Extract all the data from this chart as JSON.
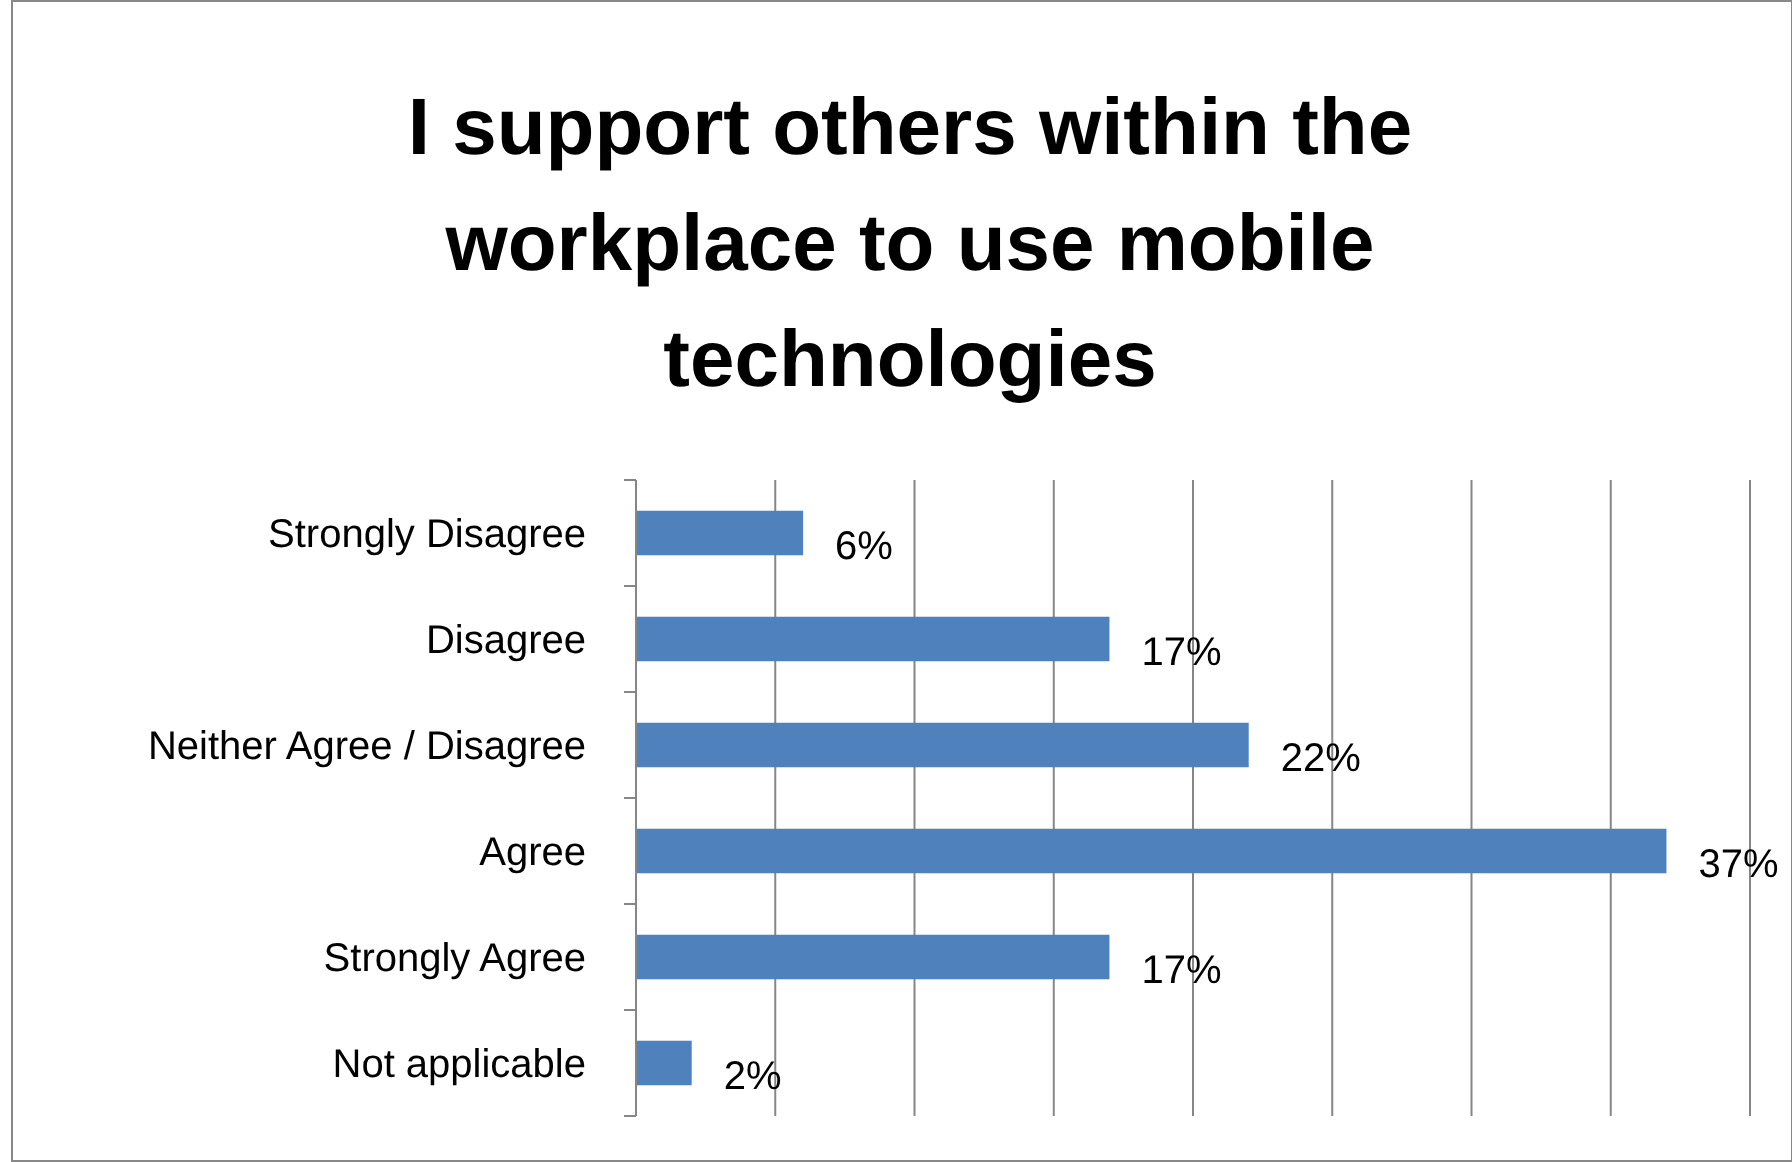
{
  "chart_data": {
    "type": "bar",
    "orientation": "horizontal",
    "title": "I support others within the workplace to use mobile technologies",
    "categories": [
      "Strongly Disagree",
      "Disagree",
      "Neither Agree / Disagree",
      "Agree",
      "Strongly Agree",
      "Not applicable"
    ],
    "values": [
      6,
      17,
      22,
      37,
      17,
      2
    ],
    "value_labels": [
      "6%",
      "17%",
      "22%",
      "37%",
      "17%",
      "2%"
    ],
    "color": "#4f81bd",
    "xlim": [
      0,
      40
    ],
    "xticks": [
      {
        "value": 0,
        "label": null
      },
      {
        "value": 5,
        "label": null
      },
      {
        "value": 10,
        "label": null
      },
      {
        "value": 15,
        "label": null
      },
      {
        "value": 20,
        "label": null
      },
      {
        "value": 25,
        "label": null
      },
      {
        "value": 30,
        "label": null
      },
      {
        "value": 35,
        "label": null
      },
      {
        "value": 40,
        "label": null
      }
    ],
    "grid": "x",
    "tick_labels": "y"
  }
}
